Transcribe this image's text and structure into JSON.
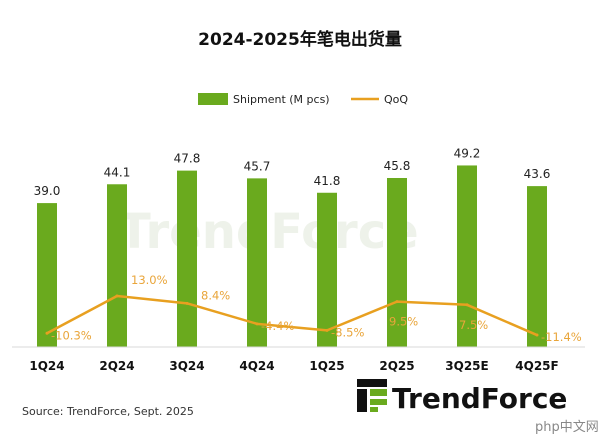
{
  "chart_data": {
    "type": "bar",
    "title": "2024-2025年笔电出货量",
    "categories": [
      "1Q24",
      "2Q24",
      "3Q24",
      "4Q24",
      "1Q25",
      "2Q25",
      "3Q25E",
      "4Q25F"
    ],
    "series": [
      {
        "name": "Shipment (M pcs)",
        "type": "bar",
        "color": "#6aaa1e",
        "values": [
          39.0,
          44.1,
          47.8,
          45.7,
          41.8,
          45.8,
          49.2,
          43.6
        ],
        "labels": [
          "39.0",
          "44.1",
          "47.8",
          "45.7",
          "41.8",
          "45.8",
          "49.2",
          "43.6"
        ]
      },
      {
        "name": "QoQ",
        "type": "line",
        "color": "#e8a020",
        "values": [
          -10.3,
          13.0,
          8.4,
          -4.4,
          -8.5,
          9.5,
          7.5,
          -11.4
        ],
        "labels": [
          "-10.3%",
          "13.0%",
          "8.4%",
          "-4.4%",
          "-8.5%",
          "9.5%",
          "7.5%",
          "-11.4%"
        ]
      }
    ],
    "xlabel": "",
    "ylabel": "",
    "grid": false,
    "legend": "top-center"
  },
  "source": "Source: TrendForce, Sept. 2025",
  "logo_text": "TrendForce",
  "watermark": "TrendForce",
  "corner_badge": "php中文网"
}
